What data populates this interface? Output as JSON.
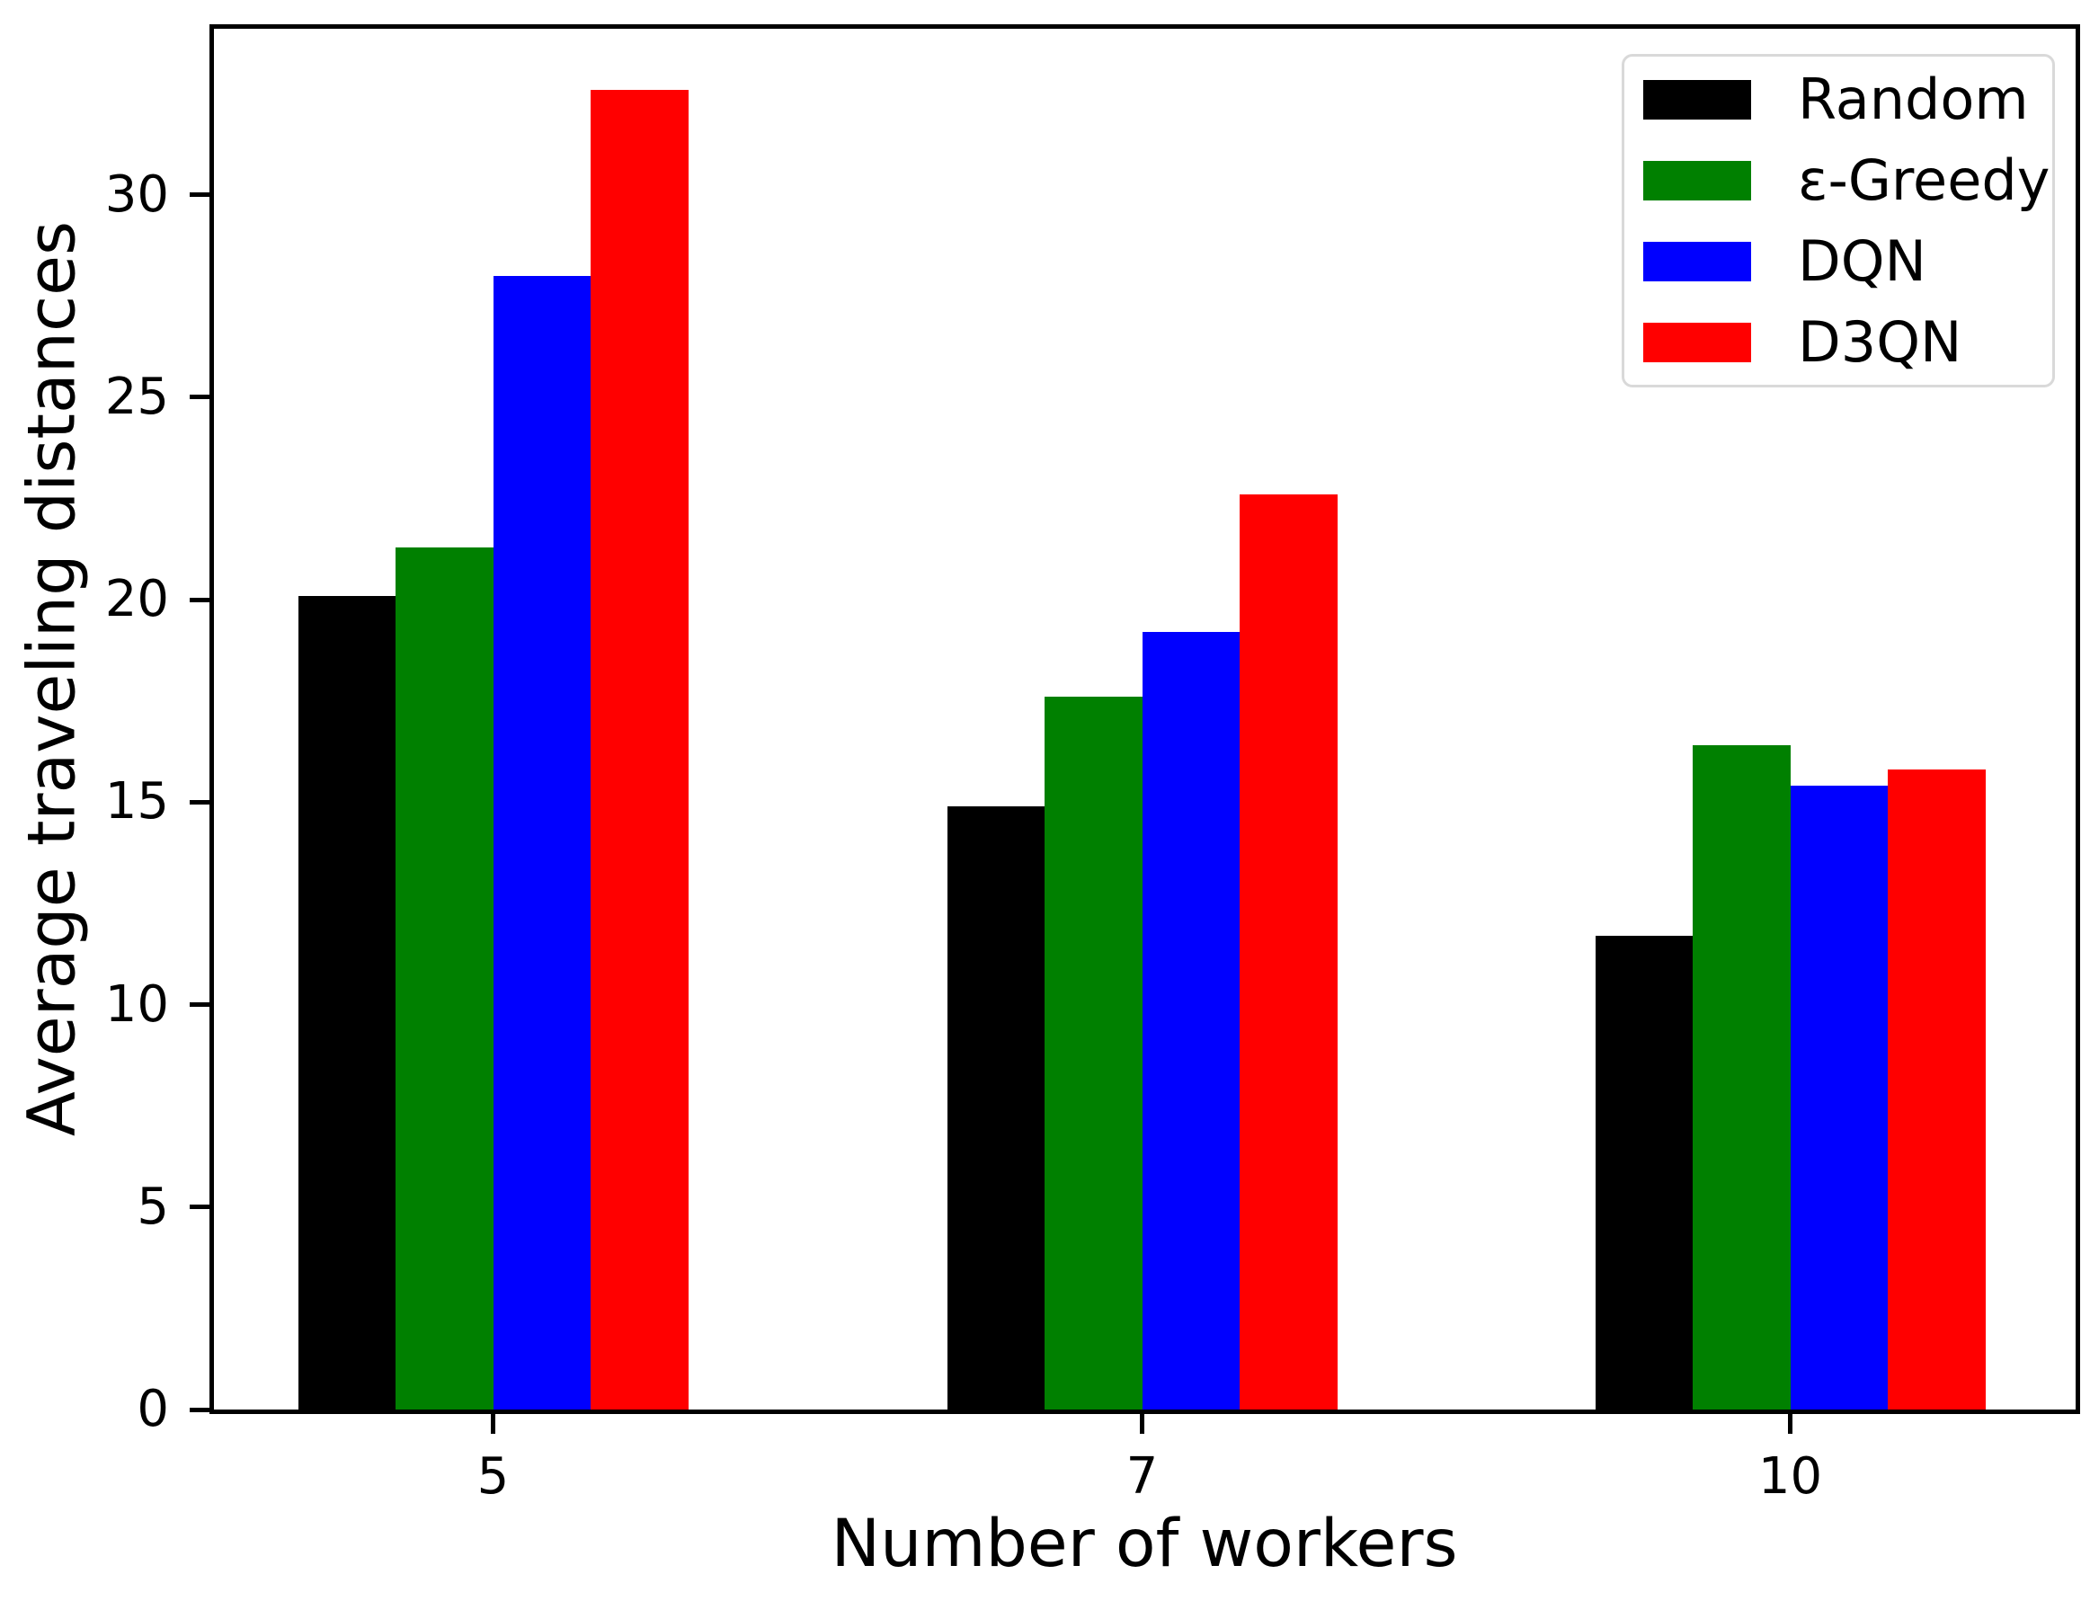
{
  "figure": {
    "background": "#ffffff",
    "axis_color": "#000000"
  },
  "chart_data": {
    "type": "bar",
    "title": "",
    "xlabel": "Number of workers",
    "ylabel": "Average traveling distances",
    "categories": [
      "5",
      "7",
      "10"
    ],
    "series": [
      {
        "name": "Random",
        "color": "#000000",
        "values": [
          20.1,
          14.9,
          11.7
        ]
      },
      {
        "name": "ε-Greedy",
        "color": "#008000",
        "values": [
          21.3,
          17.6,
          16.4
        ]
      },
      {
        "name": "DQN",
        "color": "#0000ff",
        "values": [
          28.0,
          19.2,
          15.4
        ]
      },
      {
        "name": "D3QN",
        "color": "#ff0000",
        "values": [
          32.6,
          22.6,
          15.8
        ]
      }
    ],
    "ylim": [
      0,
      34.1
    ],
    "yticks": [
      0,
      5,
      10,
      15,
      20,
      25,
      30
    ],
    "grid": false,
    "legend_position": "upper right",
    "legend_edge_color": "#d9d9d9"
  }
}
